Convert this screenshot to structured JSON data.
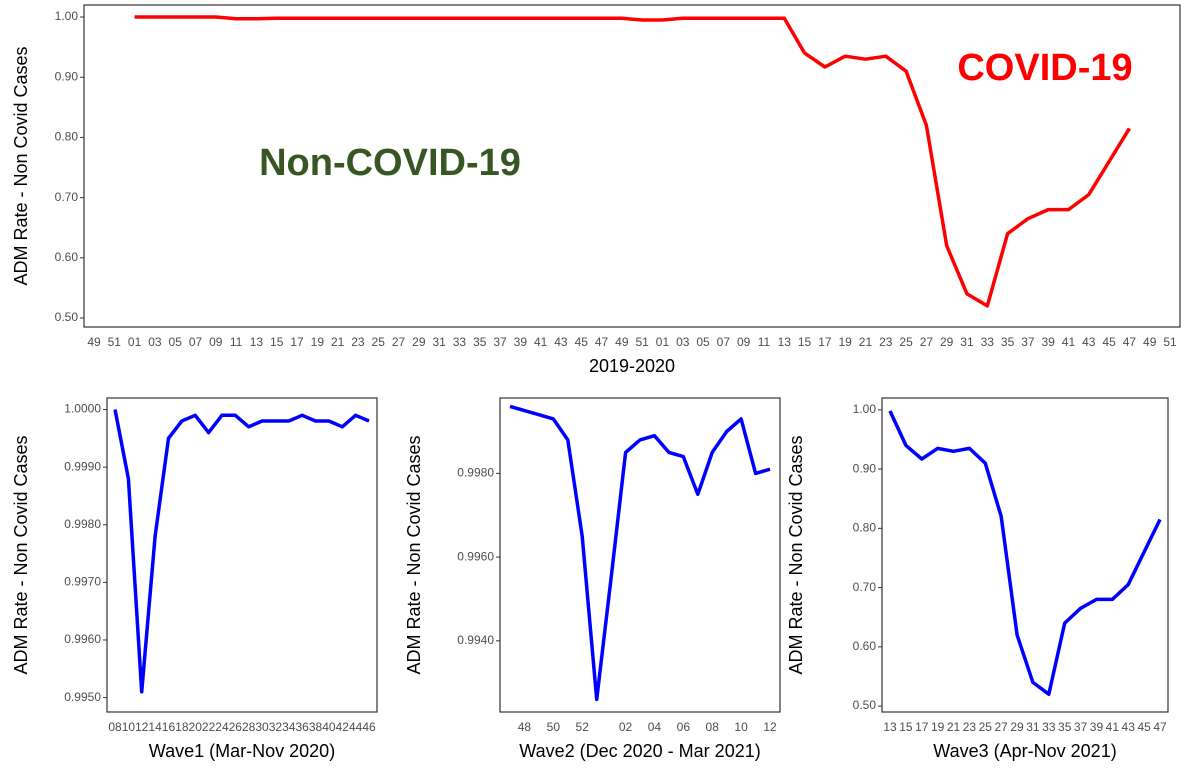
{
  "chart_data": [
    {
      "type": "line",
      "xlabel": "2019-2020",
      "ylabel": "ADM Rate - Non Covid Cases",
      "color": "#ff0000",
      "categories": [
        "49",
        "51",
        "01",
        "03",
        "05",
        "07",
        "09",
        "11",
        "13",
        "15",
        "17",
        "19",
        "21",
        "23",
        "25",
        "27",
        "29",
        "31",
        "33",
        "35",
        "37",
        "39",
        "41",
        "43",
        "45",
        "47",
        "49",
        "51",
        "01",
        "03",
        "05",
        "07",
        "09",
        "11",
        "13",
        "15",
        "17",
        "19",
        "21",
        "23",
        "25",
        "27",
        "29",
        "31",
        "33",
        "35",
        "37",
        "39",
        "41",
        "43",
        "45",
        "47",
        "49",
        "51"
      ],
      "values": [
        null,
        null,
        1.0,
        1.0,
        1.0,
        1.0,
        1.0,
        0.997,
        0.997,
        0.998,
        0.998,
        0.998,
        0.998,
        0.998,
        0.998,
        0.998,
        0.998,
        0.998,
        0.998,
        0.998,
        0.998,
        0.998,
        0.998,
        0.998,
        0.998,
        0.998,
        0.998,
        0.995,
        0.995,
        0.998,
        0.998,
        0.998,
        0.998,
        0.998,
        0.998,
        0.94,
        0.917,
        0.935,
        0.93,
        0.935,
        0.91,
        0.82,
        0.62,
        0.54,
        0.52,
        0.64,
        0.665,
        0.68,
        0.68,
        0.705,
        0.76,
        0.815,
        null,
        null
      ],
      "ylim": [
        0.485,
        1.02
      ],
      "yticks": [
        {
          "value": 0.5,
          "label": "0.50"
        },
        {
          "value": 0.6,
          "label": "0.60"
        },
        {
          "value": 0.7,
          "label": "0.70"
        },
        {
          "value": 0.8,
          "label": "0.80"
        },
        {
          "value": 0.9,
          "label": "0.90"
        },
        {
          "value": 1.0,
          "label": "1.00"
        }
      ],
      "annotations": [
        {
          "text": "Non-COVID-19",
          "color": "#375623"
        },
        {
          "text": "COVID-19",
          "color": "#ff0000"
        }
      ]
    },
    {
      "type": "line",
      "xlabel": "Wave1 (Mar-Nov 2020)",
      "ylabel": "ADM Rate - Non Covid Cases",
      "color": "#0000ff",
      "categories": [
        "08",
        "10",
        "12",
        "14",
        "16",
        "18",
        "20",
        "22",
        "24",
        "26",
        "28",
        "30",
        "32",
        "34",
        "36",
        "38",
        "40",
        "42",
        "44",
        "46"
      ],
      "values": [
        1.0,
        0.9988,
        0.9951,
        0.9978,
        0.9995,
        0.9998,
        0.9999,
        0.9996,
        0.9999,
        0.9999,
        0.9997,
        0.9998,
        0.9998,
        0.9998,
        0.9999,
        0.9998,
        0.9998,
        0.9997,
        0.9999,
        0.9998
      ],
      "ylim": [
        0.99475,
        1.0002
      ],
      "yticks": [
        {
          "value": 0.995,
          "label": "0.9950"
        },
        {
          "value": 0.996,
          "label": "0.9960"
        },
        {
          "value": 0.997,
          "label": "0.9970"
        },
        {
          "value": 0.998,
          "label": "0.9980"
        },
        {
          "value": 0.999,
          "label": "0.9990"
        },
        {
          "value": 1.0,
          "label": "1.0000"
        }
      ]
    },
    {
      "type": "line",
      "xlabel": "Wave2 (Dec 2020 - Mar 2021)",
      "ylabel": "ADM Rate - Non Covid Cases",
      "color": "#0000ff",
      "categories": [
        null,
        "48",
        null,
        "50",
        null,
        "52",
        null,
        null,
        "02",
        null,
        "04",
        null,
        "06",
        null,
        "08",
        null,
        "10",
        null,
        "12"
      ],
      "values": [
        0.9996,
        0.9995,
        0.9994,
        0.9993,
        0.9988,
        0.9965,
        0.9926,
        0.9955,
        0.9985,
        0.9988,
        0.9989,
        0.9985,
        0.9984,
        0.9975,
        0.9985,
        0.999,
        0.9993,
        0.998,
        0.9981
      ],
      "ylim": [
        0.9923,
        0.9998
      ],
      "yticks": [
        {
          "value": 0.994,
          "label": "0.9940"
        },
        {
          "value": 0.996,
          "label": "0.9960"
        },
        {
          "value": 0.998,
          "label": "0.9980"
        }
      ]
    },
    {
      "type": "line",
      "xlabel": "Wave3 (Apr-Nov 2021)",
      "ylabel": "ADM Rate - Non Covid Cases",
      "color": "#0000ff",
      "categories": [
        "13",
        "15",
        "17",
        "19",
        "21",
        "23",
        "25",
        "27",
        "29",
        "31",
        "33",
        "35",
        "37",
        "39",
        "41",
        "43",
        "45",
        "47"
      ],
      "values": [
        0.998,
        0.94,
        0.917,
        0.935,
        0.93,
        0.935,
        0.91,
        0.82,
        0.62,
        0.54,
        0.52,
        0.64,
        0.665,
        0.68,
        0.68,
        0.705,
        0.76,
        0.815
      ],
      "ylim": [
        0.49,
        1.02
      ],
      "yticks": [
        {
          "value": 0.5,
          "label": "0.50"
        },
        {
          "value": 0.6,
          "label": "0.60"
        },
        {
          "value": 0.7,
          "label": "0.70"
        },
        {
          "value": 0.8,
          "label": "0.80"
        },
        {
          "value": 0.9,
          "label": "0.90"
        },
        {
          "value": 1.0,
          "label": "1.00"
        }
      ]
    }
  ]
}
